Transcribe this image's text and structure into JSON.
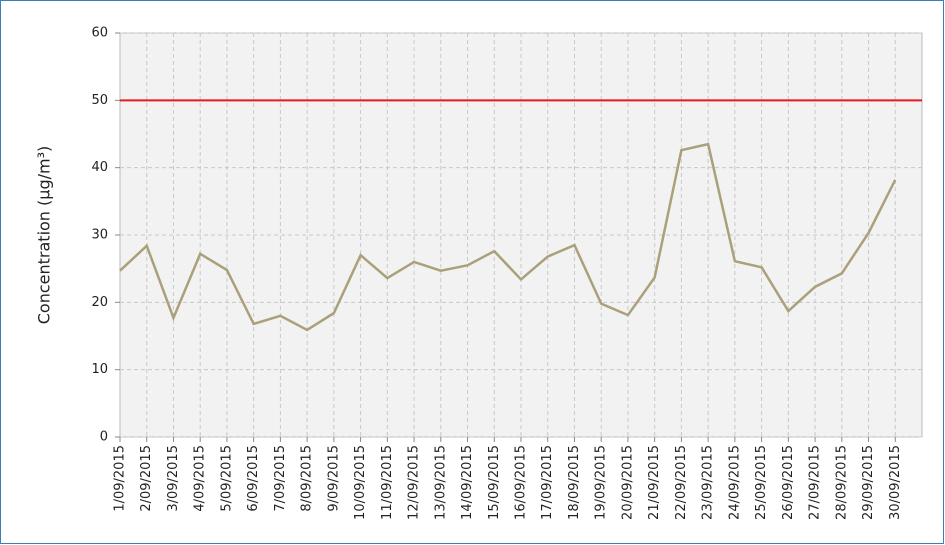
{
  "chart_data": {
    "type": "line",
    "y_label": "Concentration (µg/m³)",
    "categories": [
      "1/09/2015",
      "2/09/2015",
      "3/09/2015",
      "4/09/2015",
      "5/09/2015",
      "6/09/2015",
      "7/09/2015",
      "8/09/2015",
      "9/09/2015",
      "10/09/2015",
      "11/09/2015",
      "12/09/2015",
      "13/09/2015",
      "14/09/2015",
      "15/09/2015",
      "16/09/2015",
      "17/09/2015",
      "18/09/2015",
      "19/09/2015",
      "20/09/2015",
      "21/09/2015",
      "22/09/2015",
      "23/09/2015",
      "24/09/2015",
      "25/09/2015",
      "26/09/2015",
      "27/09/2015",
      "28/09/2015",
      "29/09/2015",
      "30/09/2015"
    ],
    "values": [
      24.7,
      28.4,
      17.7,
      27.2,
      24.8,
      16.8,
      18.0,
      15.9,
      18.4,
      27.0,
      23.6,
      26.0,
      24.7,
      25.5,
      27.6,
      23.4,
      26.8,
      28.5,
      19.8,
      18.1,
      23.7,
      42.6,
      43.5,
      26.1,
      25.2,
      18.7,
      22.3,
      24.3,
      30.3,
      38.2
    ],
    "color": "#aaa07a",
    "threshold": 50,
    "threshold_color": "#e8191a",
    "ylim": [
      0,
      60
    ],
    "yticks": [
      0,
      10,
      20,
      30,
      40,
      50,
      60
    ],
    "grid": true
  }
}
